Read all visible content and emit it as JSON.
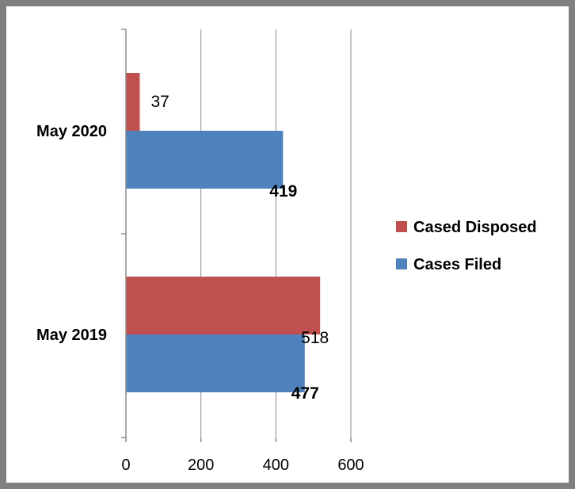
{
  "chart_data": {
    "type": "bar",
    "orientation": "horizontal",
    "categories": [
      "May 2019",
      "May 2020"
    ],
    "series": [
      {
        "name": "Cases Filed",
        "values": [
          477,
          419
        ],
        "color": "#4f81bd",
        "label_weight": "bold"
      },
      {
        "name": "Cased Disposed",
        "values": [
          518,
          37
        ],
        "color": "#c0504d",
        "label_weight": "normal"
      }
    ],
    "legend_order": [
      1,
      0
    ],
    "xlim": [
      0,
      600
    ],
    "xticks": [
      0,
      200,
      400,
      600
    ],
    "title": "",
    "xlabel": "",
    "ylabel": "",
    "grid": "vertical",
    "legend_position": "right",
    "frame_color": "#808080"
  }
}
